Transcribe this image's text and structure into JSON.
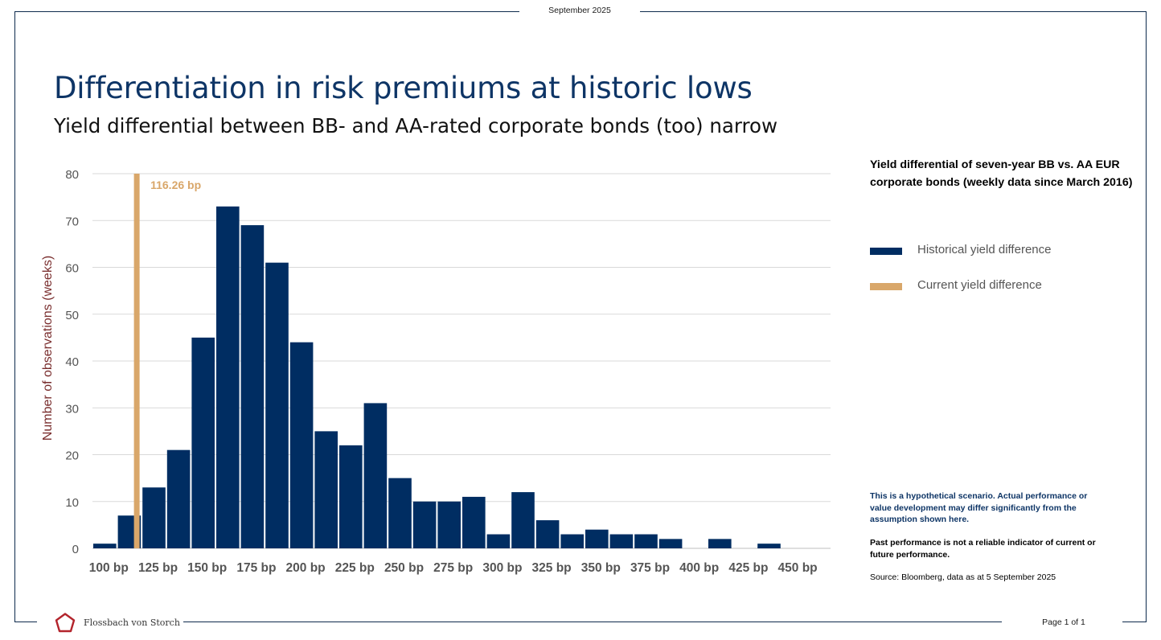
{
  "header": {
    "date": "September 2025"
  },
  "title": "Differentiation in risk premiums at historic lows",
  "subtitle": "Yield differential between BB- and AA-rated corporate bonds (too) narrow",
  "side_panel": {
    "heading": "Yield differential of seven-year BB vs. AA EUR corporate bonds (weekly data since March 2016)",
    "legend": [
      {
        "label": "Historical yield difference",
        "color": "#002d62"
      },
      {
        "label": "Current yield difference",
        "color": "#d9a76a"
      }
    ],
    "disclaimer_1": "This is a hypothetical scenario. Actual performance or value development may differ significantly from the assumption shown here.",
    "disclaimer_2": "Past performance is not a reliable indicator of current or future performance.",
    "source": "Source: Bloomberg, data as at 5 September 2025"
  },
  "footer": {
    "brand": "Flossbach von Storch",
    "page": "Page 1 of 1"
  },
  "chart_data": {
    "type": "bar",
    "ylabel": "Number of observations (weeks)",
    "ylim": [
      0,
      80
    ],
    "yticks": [
      0,
      10,
      20,
      30,
      40,
      50,
      60,
      70,
      80
    ],
    "x_tick_labels": [
      "100 bp",
      "125 bp",
      "150 bp",
      "175 bp",
      "200 bp",
      "225 bp",
      "250 bp",
      "275 bp",
      "300 bp",
      "325 bp",
      "350 bp",
      "375 bp",
      "400 bp",
      "425 bp",
      "450 bp"
    ],
    "bins": [
      100,
      112.5,
      125,
      137.5,
      150,
      162.5,
      175,
      187.5,
      200,
      212.5,
      225,
      237.5,
      250,
      262.5,
      275,
      287.5,
      300,
      312.5,
      325,
      337.5,
      350,
      362.5,
      375,
      387.5,
      400,
      412.5,
      425,
      437.5,
      450,
      462.5
    ],
    "values": [
      1,
      7,
      13,
      21,
      45,
      73,
      69,
      61,
      44,
      25,
      22,
      31,
      15,
      10,
      10,
      11,
      3,
      12,
      6,
      3,
      4,
      3,
      3,
      2,
      0,
      2,
      0,
      1,
      0,
      0
    ],
    "current_value": 116.26,
    "current_label": "116.26 bp",
    "grid": true,
    "bar_color": "#002d62",
    "current_color": "#d9a76a"
  }
}
